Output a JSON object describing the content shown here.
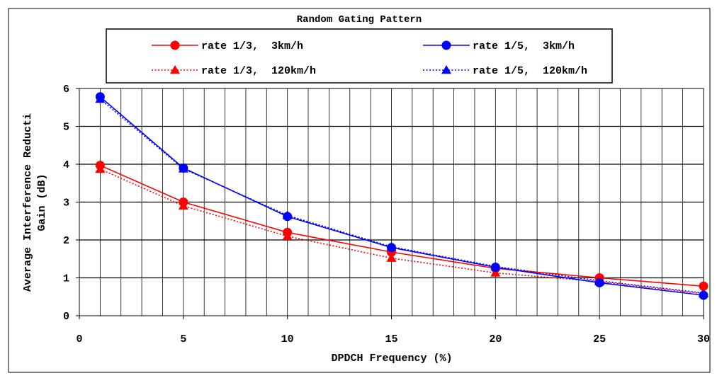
{
  "chart_data": {
    "type": "line",
    "title": "Random Gating Pattern",
    "xlabel": "DPDCH Frequency (%)",
    "ylabel": [
      "Average Interference Reducti",
      "Gain (dB)"
    ],
    "xlim": [
      0,
      30
    ],
    "ylim": [
      0,
      6
    ],
    "xticks": [
      0,
      5,
      10,
      15,
      20,
      25,
      30
    ],
    "yticks": [
      0,
      1,
      2,
      3,
      4,
      5,
      6
    ],
    "x_minor_step": 1,
    "grid": true,
    "legend_position": "top",
    "series": [
      {
        "name": "rate 1/3,  3km/h",
        "color": "#ff0000",
        "marker": "circle",
        "dash": "solid",
        "x": [
          1,
          5,
          10,
          15,
          20,
          25,
          30
        ],
        "y": [
          3.97,
          3.0,
          2.2,
          1.68,
          1.25,
          1.0,
          0.78
        ]
      },
      {
        "name": "rate 1/5,  3km/h",
        "color": "#0000ff",
        "marker": "circle",
        "dash": "solid",
        "x": [
          1,
          5,
          10,
          15,
          20,
          25,
          30
        ],
        "y": [
          5.78,
          3.9,
          2.62,
          1.8,
          1.28,
          0.87,
          0.54
        ]
      },
      {
        "name": "rate 1/3,  120km/h",
        "color": "#ff0000",
        "marker": "triangle",
        "dash": "dotted",
        "x": [
          1,
          5,
          10,
          15,
          20,
          25,
          30
        ],
        "y": [
          3.87,
          2.9,
          2.1,
          1.52,
          1.13,
          0.9,
          0.58
        ]
      },
      {
        "name": "rate 1/5,  120km/h",
        "color": "#0000ff",
        "marker": "triangle",
        "dash": "dotted",
        "x": [
          1,
          5,
          10,
          15,
          20,
          25,
          30
        ],
        "y": [
          5.72,
          3.88,
          2.65,
          1.82,
          1.3,
          0.92,
          0.6
        ]
      }
    ]
  }
}
